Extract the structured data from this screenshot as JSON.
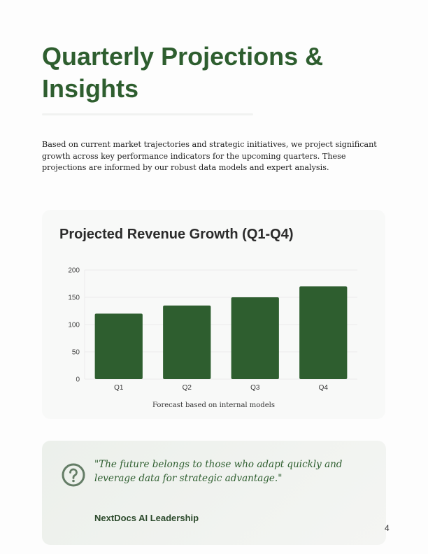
{
  "page": {
    "title": "Quarterly Projections & Insights",
    "intro": "Based on current market trajectories and strategic initiatives, we project significant growth across key performance indicators for the upcoming quarters. These projections are informed by our robust data models and expert analysis.",
    "page_number": "4"
  },
  "chart_data": {
    "type": "bar",
    "title": "Projected Revenue Growth (Q1-Q4)",
    "categories": [
      "Q1",
      "Q2",
      "Q3",
      "Q4"
    ],
    "values": [
      120,
      135,
      150,
      170
    ],
    "ylim": [
      0,
      200
    ],
    "yticks": [
      0,
      50,
      100,
      150,
      200
    ],
    "xlabel": "",
    "ylabel": "",
    "grid": true,
    "bar_color": "#2e5e2f",
    "caption": "Forecast based on internal models"
  },
  "quote": {
    "icon": "question-circle-icon",
    "text": "\"The future belongs to those who adapt quickly and leverage data for strategic advantage.\"",
    "author": "NextDocs AI Leadership"
  }
}
